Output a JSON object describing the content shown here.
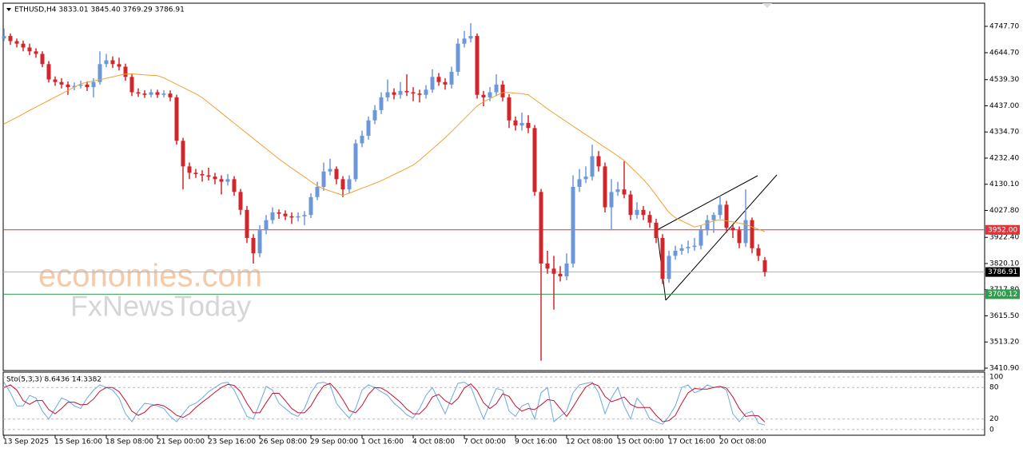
{
  "chart_data": {
    "type": "candlestick",
    "title": "ETHUSD,H4  3833.01 3845.40 3769.29 3786.91",
    "categories": [
      "13 Sep 2025",
      null,
      null,
      null,
      null,
      null,
      null,
      null,
      "15 Sep 16:00",
      null,
      null,
      null,
      null,
      null,
      null,
      null,
      "18 Sep 08:00",
      null,
      null,
      null,
      null,
      null,
      null,
      null,
      "21 Sep 00:00",
      null,
      null,
      null,
      null,
      null,
      null,
      null,
      "23 Sep 16:00",
      null,
      null,
      null,
      null,
      null,
      null,
      null,
      "26 Sep 08:00",
      null,
      null,
      null,
      null,
      null,
      null,
      null,
      "29 Sep 00:00",
      null,
      null,
      null,
      null,
      null,
      null,
      null,
      "1 Oct 16:00",
      null,
      null,
      null,
      null,
      null,
      null,
      null,
      "4 Oct 08:00",
      null,
      null,
      null,
      null,
      null,
      null,
      null,
      "7 Oct 00:00",
      null,
      null,
      null,
      null,
      null,
      null,
      null,
      "9 Oct 16:00",
      null,
      null,
      null,
      null,
      null,
      null,
      null,
      "12 Oct 08:00",
      null,
      null,
      null,
      null,
      null,
      null,
      null,
      "15 Oct 00:00",
      null,
      null,
      null,
      null,
      null,
      null,
      null,
      "17 Oct 16:00",
      null,
      null,
      null,
      null,
      null,
      null,
      null,
      "20 Oct 08:00",
      null,
      null,
      null,
      null,
      null,
      null,
      null
    ],
    "up_color": "#6d98d8",
    "down_color": "#d1262b",
    "open": [
      4700,
      4710,
      4690,
      4680,
      4665,
      4650,
      4640,
      4600,
      4540,
      4530,
      4520,
      4510,
      4515,
      4520,
      4510,
      4530,
      4600,
      4615,
      4600,
      4590,
      4550,
      4490,
      4485,
      4480,
      4490,
      4480,
      4485,
      4470,
      4300,
      4200,
      4175,
      4170,
      4165,
      4160,
      4150,
      4140,
      4150,
      4100,
      4030,
      3920,
      3860,
      3950,
      3990,
      4020,
      4015,
      4005,
      4000,
      4005,
      4010,
      4080,
      4120,
      4180,
      4190,
      4150,
      4110,
      4150,
      4290,
      4320,
      4380,
      4420,
      4470,
      4490,
      4480,
      4495,
      4490,
      4485,
      4480,
      4500,
      4550,
      4530,
      4520,
      4570,
      4680,
      4700,
      4710,
      4480,
      4470,
      4490,
      4520,
      4470,
      4380,
      4360,
      4370,
      4350,
      4100,
      3820,
      3800,
      3780,
      3770,
      3820,
      4120,
      4150,
      4160,
      4240,
      4200,
      4040,
      4100,
      4110,
      4090,
      4010,
      4030,
      4010,
      3980,
      3920,
      3760,
      3850,
      3870,
      3880,
      3885,
      3890,
      3950,
      3990,
      4010,
      4050,
      3960,
      3950,
      3900,
      3990,
      3880,
      3833.01
    ],
    "high": [
      4740,
      4720,
      4700,
      4692,
      4680,
      4662,
      4650,
      4612,
      4552,
      4545,
      4532,
      4528,
      4535,
      4532,
      4545,
      4650,
      4640,
      4630,
      4625,
      4602,
      4562,
      4505,
      4498,
      4502,
      4500,
      4498,
      4497,
      4480,
      4312,
      4215,
      4190,
      4185,
      4195,
      4175,
      4165,
      4170,
      4162,
      4112,
      4045,
      3935,
      3970,
      4010,
      4040,
      4032,
      4028,
      4020,
      4020,
      4025,
      4095,
      4140,
      4215,
      4230,
      4200,
      4162,
      4165,
      4305,
      4340,
      4395,
      4440,
      4490,
      4540,
      4505,
      4530,
      4560,
      4510,
      4500,
      4518,
      4580,
      4565,
      4545,
      4590,
      4700,
      4730,
      4760,
      4720,
      4495,
      4510,
      4560,
      4535,
      4482,
      4395,
      4410,
      4400,
      4362,
      4112,
      3870,
      3850,
      3810,
      3860,
      4165,
      4190,
      4200,
      4285,
      4260,
      4215,
      4150,
      4140,
      4220,
      4105,
      4060,
      4045,
      4025,
      3995,
      3935,
      3870,
      3890,
      3895,
      3910,
      3920,
      3970,
      4010,
      4020,
      4085,
      4065,
      3975,
      3965,
      4110,
      4000,
      3895,
      3845.4
    ],
    "low": [
      4690,
      4675,
      4665,
      4650,
      4635,
      4625,
      4588,
      4528,
      4515,
      4505,
      4480,
      4498,
      4505,
      4495,
      4470,
      4520,
      4588,
      4585,
      4575,
      4535,
      4475,
      4472,
      4468,
      4470,
      4468,
      4470,
      4455,
      4285,
      4110,
      4150,
      4155,
      4140,
      4145,
      4130,
      4090,
      4125,
      4085,
      4010,
      3900,
      3820,
      3845,
      3935,
      3975,
      3995,
      3990,
      3975,
      3985,
      3970,
      3998,
      4068,
      4105,
      4165,
      4130,
      4080,
      4095,
      4140,
      4275,
      4305,
      4365,
      4405,
      4455,
      4462,
      4465,
      4475,
      4455,
      4450,
      4465,
      4488,
      4515,
      4500,
      4505,
      4555,
      4665,
      4685,
      4465,
      4435,
      4455,
      4475,
      4455,
      4350,
      4340,
      4340,
      4330,
      4085,
      3440,
      3780,
      3640,
      3750,
      3755,
      3805,
      4100,
      4135,
      4145,
      4180,
      4020,
      3950,
      4085,
      4075,
      3990,
      3995,
      3990,
      3960,
      3900,
      3740,
      3745,
      3835,
      3855,
      3860,
      3870,
      3875,
      3930,
      3940,
      3995,
      3940,
      3920,
      3880,
      3885,
      3860,
      3830,
      3769.29
    ],
    "close": [
      4710,
      4690,
      4680,
      4665,
      4650,
      4640,
      4600,
      4540,
      4530,
      4520,
      4510,
      4515,
      4520,
      4510,
      4530,
      4600,
      4615,
      4600,
      4590,
      4550,
      4490,
      4485,
      4480,
      4490,
      4480,
      4485,
      4470,
      4300,
      4200,
      4175,
      4170,
      4165,
      4160,
      4150,
      4140,
      4150,
      4100,
      4030,
      3920,
      3860,
      3950,
      3990,
      4020,
      4015,
      4005,
      4000,
      4005,
      4010,
      4080,
      4120,
      4180,
      4190,
      4150,
      4110,
      4150,
      4290,
      4320,
      4380,
      4420,
      4470,
      4490,
      4480,
      4495,
      4490,
      4485,
      4480,
      4500,
      4550,
      4530,
      4520,
      4570,
      4680,
      4700,
      4710,
      4480,
      4470,
      4490,
      4520,
      4470,
      4380,
      4360,
      4370,
      4350,
      4100,
      3820,
      3800,
      3780,
      3770,
      3820,
      4120,
      4150,
      4160,
      4240,
      4200,
      4040,
      4100,
      4110,
      4090,
      4010,
      4030,
      4010,
      3980,
      3920,
      3760,
      3850,
      3870,
      3880,
      3885,
      3890,
      3950,
      3990,
      4010,
      4050,
      3960,
      3950,
      3900,
      3990,
      3880,
      3850,
      3786.91
    ],
    "ma": {
      "color": "#f0a030",
      "values": [
        4366,
        4379,
        4392,
        4405,
        4419,
        4432,
        4445,
        4458,
        4471,
        4484,
        4497,
        4510,
        4523,
        4529,
        4534,
        4539,
        4545,
        4550,
        4556,
        4561,
        4562,
        4560,
        4558,
        4556,
        4555,
        4546,
        4534,
        4521,
        4509,
        4496,
        4484,
        4469,
        4449,
        4429,
        4409,
        4389,
        4369,
        4349,
        4329,
        4309,
        4289,
        4269,
        4249,
        4229,
        4211,
        4193,
        4176,
        4159,
        4141,
        4124,
        4112,
        4104,
        4095,
        4087,
        4095,
        4105,
        4115,
        4124,
        4134,
        4144,
        4156,
        4168,
        4180,
        4193,
        4205,
        4224,
        4246,
        4268,
        4290,
        4312,
        4336,
        4361,
        4386,
        4411,
        4436,
        4453,
        4465,
        4477,
        4489,
        4489,
        4486,
        4484,
        4480,
        4462,
        4444,
        4425,
        4408,
        4391,
        4374,
        4357,
        4341,
        4324,
        4308,
        4291,
        4274,
        4258,
        4241,
        4223,
        4198,
        4174,
        4149,
        4120,
        4087,
        4053,
        4020,
        3999,
        3987,
        3975,
        3963,
        3969,
        3978,
        3987,
        3991,
        3987,
        3983,
        3978,
        3973,
        3963,
        3954,
        3945
      ]
    },
    "ylim": [
      3401.5,
      4838.3
    ],
    "yticks": [
      {
        "value": 4747.7,
        "label": "4747.70"
      },
      {
        "value": 4644.7,
        "label": "4644.70"
      },
      {
        "value": 4539.3,
        "label": "4539.30"
      },
      {
        "value": 4437,
        "label": "4437.00"
      },
      {
        "value": 4334.7,
        "label": "4334.70"
      },
      {
        "value": 4232.4,
        "label": "4232.40"
      },
      {
        "value": 4130.1,
        "label": "4130.10"
      },
      {
        "value": 4027.8,
        "label": "4027.80"
      },
      {
        "value": 3922.4,
        "label": "3922.40"
      },
      {
        "value": 3820.1,
        "label": "3820.10"
      },
      {
        "value": 3717.8,
        "label": "3717.80"
      },
      {
        "value": 3615.5,
        "label": "3615.50"
      },
      {
        "value": 3513.2,
        "label": "3513.20"
      },
      {
        "value": 3410.9,
        "label": "3410.90"
      }
    ],
    "levels": [
      {
        "value": 3952,
        "label": "3952.00",
        "color": "#e0333a"
      },
      {
        "value": 3786.91,
        "label": "3786.91",
        "color": "#000000"
      },
      {
        "value": 3700.12,
        "label": "3700.12",
        "color": "#2e9e4e"
      }
    ],
    "watermark": [
      "economies.com",
      "FxNewsToday"
    ],
    "indicator": {
      "label": "Sto(5,3,3) 8.6436 14.3382",
      "ylim": [
        -10.8,
        109.2
      ],
      "yticks": [
        100,
        80,
        20,
        0
      ],
      "series": [
        {
          "color": "#6aa9e6",
          "values": [
            90,
            70,
            45,
            45,
            65,
            60,
            35,
            20,
            40,
            60,
            55,
            45,
            40,
            60,
            75,
            85,
            80,
            75,
            60,
            30,
            15,
            35,
            50,
            48,
            45,
            40,
            25,
            15,
            30,
            45,
            50,
            60,
            72,
            80,
            88,
            90,
            75,
            50,
            25,
            20,
            50,
            82,
            75,
            50,
            40,
            30,
            25,
            40,
            70,
            88,
            90,
            85,
            50,
            35,
            22,
            40,
            75,
            85,
            80,
            72,
            65,
            50,
            40,
            28,
            22,
            40,
            65,
            80,
            55,
            30,
            60,
            88,
            90,
            82,
            50,
            20,
            50,
            78,
            75,
            35,
            25,
            45,
            50,
            20,
            70,
            80,
            15,
            25,
            35,
            70,
            85,
            88,
            90,
            70,
            30,
            60,
            80,
            45,
            20,
            60,
            45,
            20,
            15,
            10,
            25,
            45,
            80,
            85,
            70,
            75,
            85,
            80,
            82,
            75,
            30,
            15,
            30,
            35,
            12,
            8.6436
          ]
        },
        {
          "color": "#c8102e",
          "values": [
            80,
            85,
            75,
            55,
            48,
            55,
            55,
            38,
            30,
            40,
            52,
            52,
            47,
            48,
            58,
            73,
            80,
            80,
            72,
            55,
            35,
            27,
            33,
            45,
            48,
            45,
            37,
            27,
            23,
            30,
            42,
            52,
            61,
            71,
            80,
            86,
            84,
            72,
            50,
            32,
            32,
            51,
            69,
            69,
            55,
            40,
            32,
            32,
            45,
            66,
            83,
            88,
            75,
            57,
            36,
            32,
            46,
            67,
            80,
            79,
            72,
            62,
            52,
            39,
            30,
            30,
            42,
            62,
            67,
            55,
            48,
            59,
            79,
            87,
            74,
            51,
            40,
            49,
            68,
            63,
            45,
            35,
            40,
            38,
            47,
            57,
            55,
            40,
            25,
            43,
            63,
            81,
            88,
            83,
            63,
            53,
            57,
            62,
            48,
            42,
            42,
            42,
            27,
            15,
            17,
            27,
            50,
            70,
            78,
            77,
            77,
            80,
            82,
            79,
            62,
            40,
            25,
            27,
            26,
            14.3382
          ]
        }
      ]
    }
  }
}
